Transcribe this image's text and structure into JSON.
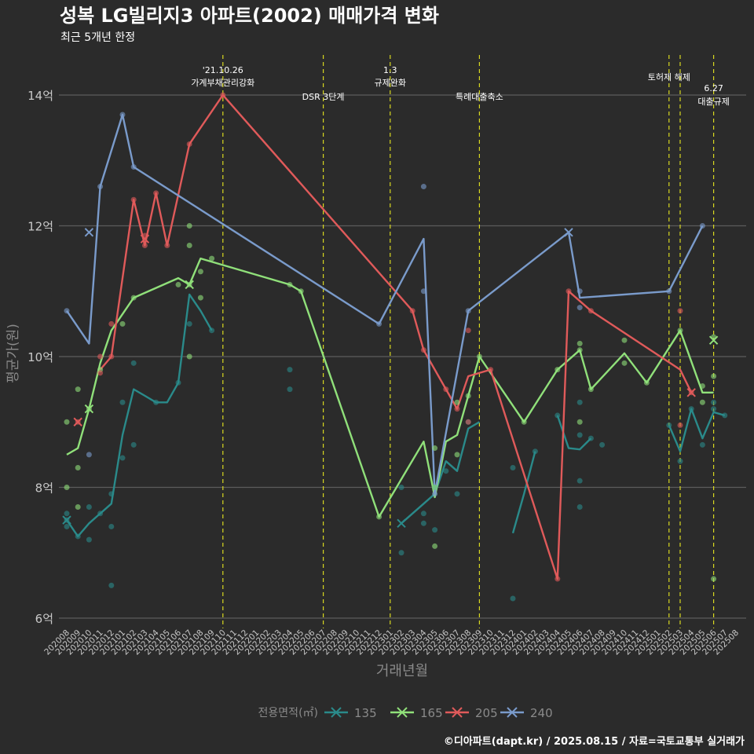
{
  "chart_data": {
    "type": "line",
    "title": "성복 LG빌리지3 아파트(2002) 매매가격 변화",
    "subtitle": "최근 5개년 한정",
    "xlabel": "거래년월",
    "ylabel": "평균가(원)",
    "ylim": [
      6,
      14.8
    ],
    "y_ticks": [
      {
        "value": 6,
        "label": "6억"
      },
      {
        "value": 8,
        "label": "8억"
      },
      {
        "value": 10,
        "label": "10억"
      },
      {
        "value": 12,
        "label": "12억"
      },
      {
        "value": 14,
        "label": "14억"
      }
    ],
    "x_categories": [
      "202008",
      "202009",
      "202010",
      "202011",
      "202012",
      "202101",
      "202102",
      "202103",
      "202104",
      "202105",
      "202106",
      "202107",
      "202108",
      "202109",
      "202110",
      "202111",
      "202112",
      "202201",
      "202202",
      "202203",
      "202204",
      "202205",
      "202206",
      "202207",
      "202208",
      "202209",
      "202210",
      "202211",
      "202212",
      "202301",
      "202302",
      "202303",
      "202304",
      "202305",
      "202306",
      "202307",
      "202308",
      "202309",
      "202310",
      "202311",
      "202312",
      "202401",
      "202402",
      "202403",
      "202404",
      "202405",
      "202406",
      "202407",
      "202408",
      "202409",
      "202410",
      "202411",
      "202412",
      "202501",
      "202502",
      "202503",
      "202504",
      "202505",
      "202506",
      "202507",
      "202508"
    ],
    "legend_title": "전용면적(㎡)",
    "legend_position": "bottom",
    "grid": true,
    "series": [
      {
        "name": "135",
        "color": "#2a8a8a",
        "line": [
          [
            [
              "202008",
              7.5
            ],
            [
              "202009",
              7.25
            ],
            [
              "202010",
              7.45
            ],
            [
              "202011",
              7.6
            ],
            [
              "202012",
              7.75
            ],
            [
              "202101",
              8.8
            ],
            [
              "202102",
              9.5
            ],
            [
              "202103",
              9.4
            ],
            [
              "202104",
              9.3
            ],
            [
              "202105",
              9.3
            ],
            [
              "202106",
              9.6
            ],
            [
              "202107",
              10.95
            ],
            [
              "202108",
              10.7
            ],
            [
              "202109",
              10.4
            ]
          ],
          [
            [
              "202302",
              7.45
            ],
            [
              "202303",
              7.6
            ],
            [
              "202304",
              7.75
            ],
            [
              "202305",
              7.9
            ],
            [
              "202306",
              8.4
            ],
            [
              "202307",
              8.25
            ],
            [
              "202308",
              8.9
            ],
            [
              "202309",
              9.0
            ]
          ],
          [
            [
              "202312",
              7.3
            ],
            [
              "202401",
              7.9
            ],
            [
              "202402",
              8.55
            ]
          ],
          [
            [
              "202404",
              9.1
            ],
            [
              "202405",
              8.6
            ],
            [
              "202406",
              8.58
            ],
            [
              "202407",
              8.75
            ]
          ],
          [
            [
              "202502",
              8.95
            ],
            [
              "202503",
              8.55
            ],
            [
              "202504",
              9.2
            ],
            [
              "202505",
              8.75
            ],
            [
              "202506",
              9.15
            ],
            [
              "202507",
              9.1
            ]
          ]
        ],
        "points": [
          [
            "202008",
            7.5
          ],
          [
            "202008",
            7.4
          ],
          [
            "202008",
            7.6
          ],
          [
            "202009",
            7.25
          ],
          [
            "202010",
            7.7
          ],
          [
            "202010",
            7.2
          ],
          [
            "202011",
            7.6
          ],
          [
            "202012",
            7.4
          ],
          [
            "202012",
            7.9
          ],
          [
            "202012",
            6.5
          ],
          [
            "202101",
            9.3
          ],
          [
            "202101",
            8.45
          ],
          [
            "202102",
            9.9
          ],
          [
            "202102",
            8.65
          ],
          [
            "202104",
            9.3
          ],
          [
            "202106",
            9.6
          ],
          [
            "202107",
            10.5
          ],
          [
            "202109",
            10.4
          ],
          [
            "202204",
            9.8
          ],
          [
            "202204",
            9.5
          ],
          [
            "202302",
            8.0
          ],
          [
            "202302",
            7.0
          ],
          [
            "202304",
            7.6
          ],
          [
            "202304",
            7.45
          ],
          [
            "202305",
            8.0
          ],
          [
            "202305",
            7.35
          ],
          [
            "202306",
            8.25
          ],
          [
            "202307",
            7.9
          ],
          [
            "202308",
            9.0
          ],
          [
            "202312",
            8.3
          ],
          [
            "202312",
            6.3
          ],
          [
            "202402",
            8.55
          ],
          [
            "202404",
            9.1
          ],
          [
            "202406",
            8.1
          ],
          [
            "202406",
            7.7
          ],
          [
            "202406",
            8.8
          ],
          [
            "202406",
            9.3
          ],
          [
            "202407",
            8.75
          ],
          [
            "202408",
            8.65
          ],
          [
            "202502",
            8.95
          ],
          [
            "202503",
            8.4
          ],
          [
            "202504",
            9.2
          ],
          [
            "202505",
            8.65
          ],
          [
            "202506",
            9.3
          ],
          [
            "202506",
            9.2
          ],
          [
            "202507",
            9.1
          ]
        ],
        "cancelled": [
          [
            "202008",
            7.5
          ],
          [
            "202302",
            7.45
          ]
        ]
      },
      {
        "name": "165",
        "color": "#90e07a",
        "line": [
          [
            [
              "202008",
              8.5
            ],
            [
              "202009",
              8.6
            ],
            [
              "202010",
              9.2
            ],
            [
              "202011",
              9.9
            ],
            [
              "202012",
              10.4
            ],
            [
              "202102",
              10.9
            ],
            [
              "202106",
              11.2
            ],
            [
              "202107",
              11.1
            ],
            [
              "202108",
              11.5
            ],
            [
              "202204",
              11.1
            ],
            [
              "202205",
              11.0
            ],
            [
              "202212",
              7.55
            ],
            [
              "202304",
              8.7
            ],
            [
              "202305",
              7.85
            ],
            [
              "202306",
              8.7
            ],
            [
              "202307",
              8.8
            ],
            [
              "202308",
              9.4
            ],
            [
              "202309",
              10.0
            ],
            [
              "202401",
              9.0
            ],
            [
              "202404",
              9.8
            ],
            [
              "202406",
              10.1
            ],
            [
              "202407",
              9.5
            ],
            [
              "202410",
              10.05
            ],
            [
              "202412",
              9.6
            ],
            [
              "202503",
              10.4
            ],
            [
              "202505",
              9.45
            ],
            [
              "202506",
              9.45
            ]
          ]
        ],
        "points": [
          [
            "202008",
            9.0
          ],
          [
            "202008",
            8.0
          ],
          [
            "202009",
            9.5
          ],
          [
            "202009",
            8.3
          ],
          [
            "202009",
            7.7
          ],
          [
            "202010",
            9.2
          ],
          [
            "202011",
            9.8
          ],
          [
            "202101",
            10.5
          ],
          [
            "202102",
            10.9
          ],
          [
            "202106",
            11.1
          ],
          [
            "202107",
            12.0
          ],
          [
            "202107",
            11.7
          ],
          [
            "202107",
            11.1
          ],
          [
            "202107",
            10.0
          ],
          [
            "202108",
            11.3
          ],
          [
            "202108",
            10.9
          ],
          [
            "202109",
            11.5
          ],
          [
            "202204",
            11.1
          ],
          [
            "202205",
            11.0
          ],
          [
            "202212",
            7.55
          ],
          [
            "202305",
            8.6
          ],
          [
            "202305",
            7.1
          ],
          [
            "202305",
            8.0
          ],
          [
            "202307",
            8.5
          ],
          [
            "202307",
            9.3
          ],
          [
            "202308",
            9.4
          ],
          [
            "202309",
            10.0
          ],
          [
            "202401",
            9.0
          ],
          [
            "202404",
            9.8
          ],
          [
            "202406",
            10.2
          ],
          [
            "202406",
            10.1
          ],
          [
            "202406",
            9.0
          ],
          [
            "202407",
            9.5
          ],
          [
            "202410",
            10.25
          ],
          [
            "202410",
            9.9
          ],
          [
            "202412",
            9.6
          ],
          [
            "202503",
            10.4
          ],
          [
            "202505",
            9.55
          ],
          [
            "202505",
            9.3
          ],
          [
            "202506",
            10.3
          ],
          [
            "202506",
            9.7
          ],
          [
            "202506",
            6.6
          ]
        ],
        "cancelled": [
          [
            "202010",
            9.2
          ],
          [
            "202107",
            11.1
          ],
          [
            "202506",
            10.25
          ]
        ]
      },
      {
        "name": "205",
        "color": "#e05a5a",
        "line": [
          [
            [
              "202011",
              9.8
            ],
            [
              "202012",
              10.0
            ],
            [
              "202102",
              12.4
            ],
            [
              "202103",
              11.7
            ],
            [
              "202104",
              12.5
            ],
            [
              "202105",
              11.7
            ],
            [
              "202107",
              13.25
            ],
            [
              "202110",
              14.0
            ],
            [
              "202303",
              10.7
            ],
            [
              "202304",
              10.1
            ],
            [
              "202306",
              9.5
            ],
            [
              "202307",
              9.2
            ],
            [
              "202308",
              9.7
            ],
            [
              "202310",
              9.8
            ],
            [
              "202404",
              6.6
            ],
            [
              "202405",
              11.0
            ],
            [
              "202407",
              10.7
            ],
            [
              "202503",
              9.8
            ],
            [
              "202504",
              9.45
            ]
          ]
        ],
        "points": [
          [
            "202009",
            9.0
          ],
          [
            "202011",
            10.0
          ],
          [
            "202011",
            9.75
          ],
          [
            "202012",
            10.5
          ],
          [
            "202012",
            10.0
          ],
          [
            "202102",
            12.4
          ],
          [
            "202103",
            11.85
          ],
          [
            "202103",
            11.7
          ],
          [
            "202104",
            12.5
          ],
          [
            "202105",
            11.7
          ],
          [
            "202107",
            13.25
          ],
          [
            "202110",
            14.0
          ],
          [
            "202303",
            10.7
          ],
          [
            "202304",
            10.1
          ],
          [
            "202306",
            9.5
          ],
          [
            "202307",
            9.2
          ],
          [
            "202308",
            9.0
          ],
          [
            "202308",
            10.4
          ],
          [
            "202310",
            9.8
          ],
          [
            "202404",
            6.6
          ],
          [
            "202405",
            11.0
          ],
          [
            "202407",
            10.7
          ],
          [
            "202503",
            10.7
          ],
          [
            "202503",
            8.95
          ],
          [
            "202504",
            9.45
          ]
        ],
        "cancelled": [
          [
            "202009",
            9.0
          ],
          [
            "202103",
            11.8
          ],
          [
            "202504",
            9.45
          ]
        ]
      },
      {
        "name": "240",
        "color": "#7a9bcb",
        "line": [
          [
            [
              "202008",
              10.7
            ],
            [
              "202010",
              10.2
            ],
            [
              "202011",
              12.6
            ],
            [
              "202101",
              13.7
            ],
            [
              "202102",
              12.9
            ],
            [
              "202212",
              10.5
            ],
            [
              "202304",
              11.8
            ],
            [
              "202305",
              7.9
            ],
            [
              "202308",
              10.7
            ],
            [
              "202405",
              11.9
            ],
            [
              "202406",
              10.9
            ],
            [
              "202502",
              11.0
            ],
            [
              "202505",
              12.0
            ]
          ]
        ],
        "points": [
          [
            "202008",
            10.7
          ],
          [
            "202010",
            8.5
          ],
          [
            "202011",
            12.6
          ],
          [
            "202101",
            13.7
          ],
          [
            "202102",
            12.9
          ],
          [
            "202212",
            10.5
          ],
          [
            "202304",
            12.6
          ],
          [
            "202304",
            11.0
          ],
          [
            "202305",
            7.9
          ],
          [
            "202308",
            10.7
          ],
          [
            "202406",
            11.0
          ],
          [
            "202406",
            10.75
          ],
          [
            "202502",
            11.0
          ],
          [
            "202505",
            12.0
          ]
        ],
        "cancelled": [
          [
            "202010",
            11.9
          ],
          [
            "202405",
            11.9
          ]
        ]
      }
    ],
    "events": [
      {
        "x": "202110",
        "label1": "'21.10.26",
        "label2": "가계부채관리강화"
      },
      {
        "x": "202207",
        "label1": "",
        "label2": "DSR 3단계"
      },
      {
        "x": "202301",
        "label1": "1.3",
        "label2": "규제완화"
      },
      {
        "x": "202309",
        "label1": "",
        "label2": "특례대출축소"
      },
      {
        "x": "202502",
        "label1": "",
        "label2": "토허제 해제"
      },
      {
        "x": "202503",
        "label1": "",
        "label2": ""
      },
      {
        "x": "202506",
        "label1": "6.27",
        "label2": "대출규제"
      }
    ],
    "caption": "©디아파트(dapt.kr) / 2025.08.15 / 자료=국토교통부 실거래가"
  },
  "colors": {
    "background": "#2b2b2b",
    "grid": "#5c5c5c",
    "event_line": "#d8d820",
    "text": "#ffffff",
    "axis_text": "#c8c8c8",
    "axis_title": "#8a8a8a"
  }
}
